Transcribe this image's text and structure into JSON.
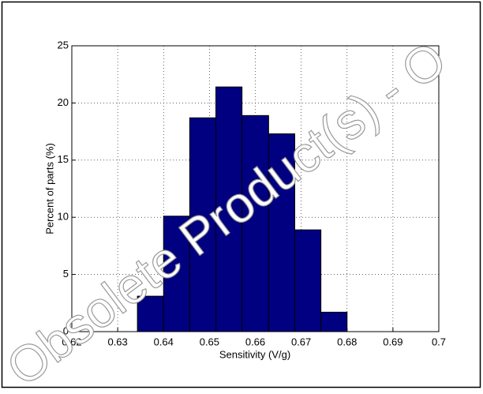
{
  "chart_data": {
    "type": "histogram",
    "xlabel": "Sensitivity (V/g)",
    "ylabel": "Percent of parts (%)",
    "bins": [
      0.6343,
      0.64,
      0.6457,
      0.6514,
      0.6571,
      0.6629,
      0.6686,
      0.6743,
      0.68
    ],
    "values": [
      3.1,
      10.1,
      18.7,
      21.4,
      18.9,
      17.3,
      8.9,
      1.7
    ],
    "color": "#000080",
    "xlim": [
      0.62,
      0.7
    ],
    "xticks": [
      0.62,
      0.63,
      0.64,
      0.65,
      0.66,
      0.67,
      0.68,
      0.69,
      0.7
    ],
    "ylim": [
      0,
      25
    ],
    "yticks": [
      0,
      5,
      10,
      15,
      20,
      25
    ],
    "grid": true,
    "watermark": "Obsolete Product(s) - O"
  }
}
